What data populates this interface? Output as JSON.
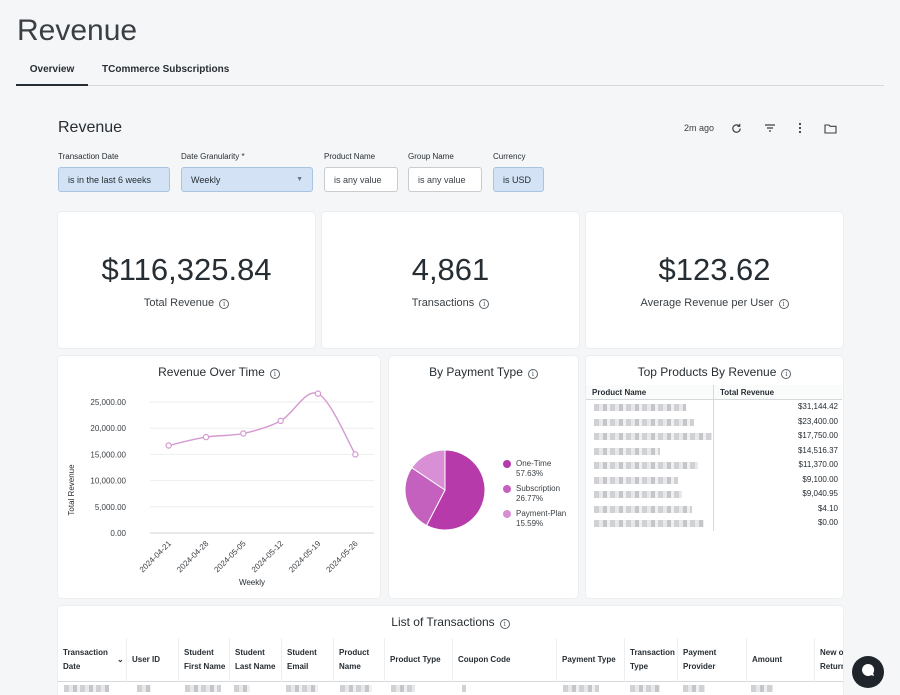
{
  "page": {
    "title": "Revenue"
  },
  "tabs": [
    {
      "label": "Overview",
      "active": true
    },
    {
      "label": "TCommerce Subscriptions",
      "active": false
    }
  ],
  "dashboard": {
    "title": "Revenue",
    "updated": "2m ago"
  },
  "filters": [
    {
      "label": "Transaction Date",
      "value": "is in the last 6 weeks"
    },
    {
      "label": "Date Granularity *",
      "value": "Weekly"
    },
    {
      "label": "Product Name",
      "value": "is any value"
    },
    {
      "label": "Group Name",
      "value": "is any value"
    },
    {
      "label": "Currency",
      "value": "is USD"
    }
  ],
  "kpis": [
    {
      "value": "$116,325.84",
      "label": "Total Revenue"
    },
    {
      "value": "4,861",
      "label": "Transactions"
    },
    {
      "value": "$123.62",
      "label": "Average Revenue per User"
    }
  ],
  "colors": {
    "line": "#d49ad0",
    "one_time": "#b63aa9",
    "subscription": "#c461be",
    "payment_plan": "#d98fd6",
    "accent": "#1f252b"
  },
  "chart_data": [
    {
      "type": "line",
      "title": "Revenue Over Time",
      "xlabel": "Weekly",
      "ylabel": "Total Revenue",
      "categories": [
        "2024-04-21",
        "2024-04-28",
        "2024-05-05",
        "2024-05-12",
        "2024-05-19",
        "2024-05-26"
      ],
      "series": [
        {
          "values": [
            16700,
            18300,
            19000,
            21400,
            26600,
            15000
          ]
        }
      ],
      "yticks": [
        "0.00",
        "5,000.00",
        "10,000.00",
        "15,000.00",
        "20,000.00",
        "25,000.00"
      ],
      "ylim": [
        0,
        25000
      ],
      "grid": true
    },
    {
      "type": "pie",
      "title": "By Payment Type",
      "slices": [
        {
          "name": "One-Time",
          "value": 57.63,
          "label": "57.63%"
        },
        {
          "name": "Subscription",
          "value": 26.77,
          "label": "26.77%"
        },
        {
          "name": "Payment-Plan",
          "value": 15.59,
          "label": "15.59%"
        }
      ],
      "legend": "right"
    },
    {
      "type": "table",
      "title": "Top Products By Revenue",
      "columns": [
        "Product Name",
        "Total Revenue"
      ],
      "values": [
        "$31,144.42",
        "$23,400.00",
        "$17,750.00",
        "$14,516.37",
        "$11,370.00",
        "$9,100.00",
        "$9,040.95",
        "$4.10",
        "$0.00"
      ]
    }
  ],
  "transactions": {
    "title": "List of Transactions",
    "columns": [
      "Transaction Date",
      "User ID",
      "Student First Name",
      "Student Last Name",
      "Student Email",
      "Product Name",
      "Product Type",
      "Coupon Code",
      "Payment Type",
      "Transaction Type",
      "Payment Provider",
      "Amount",
      "New or Returning"
    ],
    "sort_column": "Transaction Date"
  },
  "icons": {
    "refresh": "refresh-icon",
    "filter": "filter-icon",
    "more": "more-icon",
    "folder": "folder-icon",
    "chat": "chat-icon"
  }
}
